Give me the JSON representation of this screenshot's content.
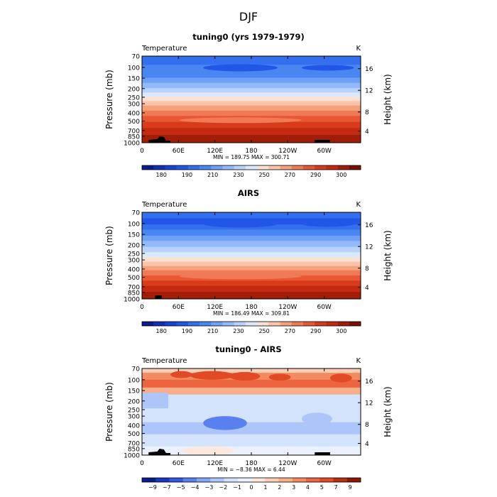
{
  "figure": {
    "title": "DJF"
  },
  "chart_data": [
    {
      "type": "heatmap",
      "title": "tuning0 (yrs 1979-1979)",
      "left_label": "Temperature",
      "units": "K",
      "ylabel": "Pressure (mb)",
      "ylabel_right": "Height (km)",
      "xticks": [
        "0",
        "60E",
        "120E",
        "180",
        "120W",
        "60W"
      ],
      "yticks": [
        "70",
        "100",
        "150",
        "200",
        "250",
        "300",
        "400",
        "500",
        "700",
        "850",
        "1000"
      ],
      "yticks_right": [
        "16",
        "12",
        "8",
        "4"
      ],
      "stats": "MIN = 189.75   MAX = 300.71",
      "colorbar_labels": [
        "180",
        "190",
        "210",
        "230",
        "250",
        "270",
        "290",
        "300"
      ]
    },
    {
      "type": "heatmap",
      "title": "AIRS",
      "left_label": "Temperature",
      "units": "K",
      "ylabel": "Pressure (mb)",
      "ylabel_right": "Height (km)",
      "xticks": [
        "0",
        "60E",
        "120E",
        "180",
        "120W",
        "60W"
      ],
      "yticks": [
        "70",
        "100",
        "150",
        "200",
        "250",
        "300",
        "400",
        "500",
        "700",
        "850",
        "1000"
      ],
      "yticks_right": [
        "16",
        "12",
        "8",
        "4"
      ],
      "stats": "MIN = 186.49   MAX = 309.81",
      "colorbar_labels": [
        "180",
        "190",
        "210",
        "230",
        "250",
        "270",
        "290",
        "300"
      ]
    },
    {
      "type": "heatmap",
      "title": "tuning0 - AIRS",
      "left_label": "Temperature",
      "units": "K",
      "ylabel": "Pressure (mb)",
      "ylabel_right": "Height (km)",
      "xticks": [
        "0",
        "60E",
        "120E",
        "180",
        "120W",
        "60W"
      ],
      "yticks": [
        "70",
        "100",
        "150",
        "200",
        "250",
        "300",
        "400",
        "500",
        "700",
        "850",
        "1000"
      ],
      "yticks_right": [
        "16",
        "12",
        "8",
        "4"
      ],
      "stats": "MIN = −8.36   MAX =    6.44",
      "colorbar_labels": [
        "−9",
        "−7",
        "−5",
        "−4",
        "−3",
        "−2",
        "−1",
        "0",
        "1",
        "2",
        "3",
        "4",
        "5",
        "7",
        "9"
      ]
    }
  ],
  "colors": {
    "abs_scale": [
      "#0a1c8c",
      "#0f2fb8",
      "#1742d8",
      "#2256e6",
      "#336fee",
      "#4a86f2",
      "#6ea0f5",
      "#93baf8",
      "#b8d2fa",
      "#dbe8fb",
      "#fbe1d2",
      "#f9c4aa",
      "#f5a07d",
      "#f07a55",
      "#e85634",
      "#da3a1c",
      "#c42a10",
      "#a01e08",
      "#7a1004"
    ],
    "anom_scale": [
      "#0a1c8c",
      "#1a36c0",
      "#3358e2",
      "#5a7fee",
      "#84a4f4",
      "#adc5f8",
      "#d3e3fb",
      "#e8f1fd",
      "#fde8dc",
      "#fbcfb7",
      "#f8ae8b",
      "#f38a60",
      "#ec6540",
      "#e04a26",
      "#b8300f",
      "#8a1a05"
    ],
    "terrain": "#000000"
  }
}
